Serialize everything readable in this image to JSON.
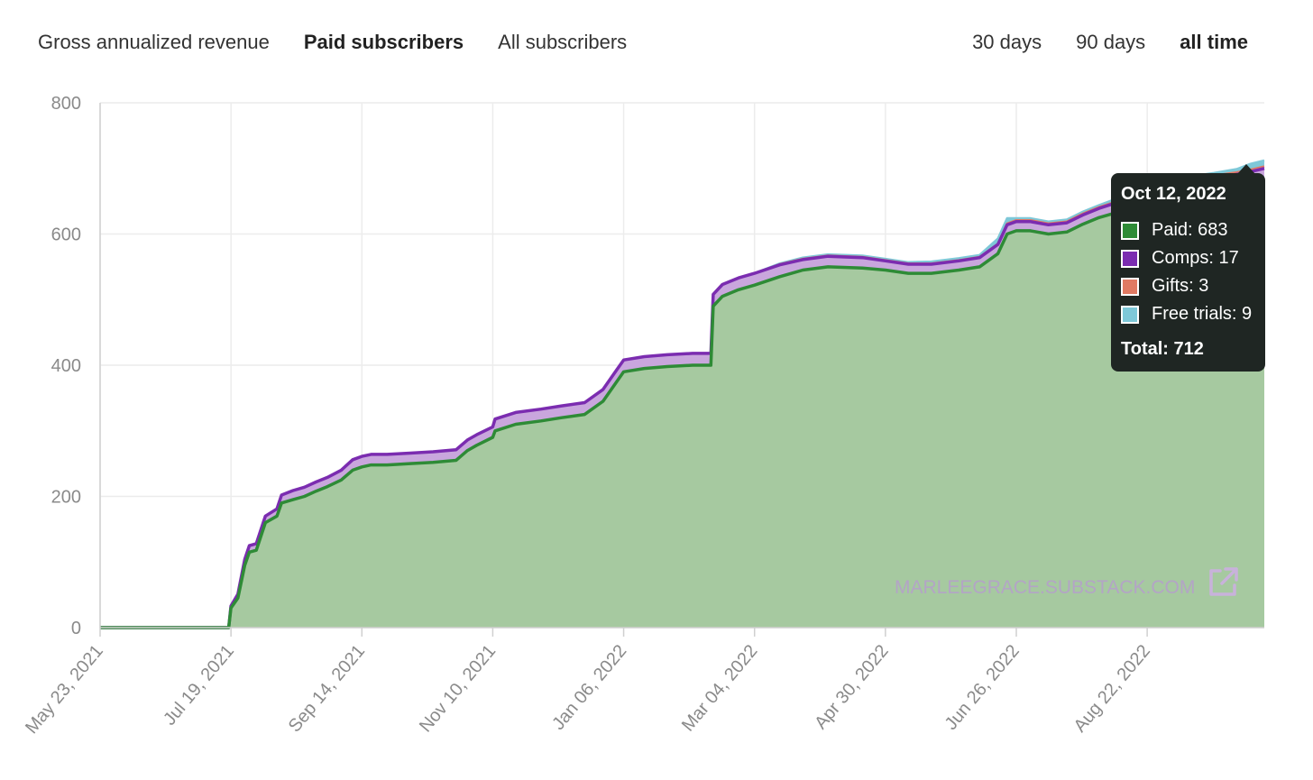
{
  "metric_tabs": [
    {
      "label": "Gross annualized revenue",
      "active": false
    },
    {
      "label": "Paid subscribers",
      "active": true
    },
    {
      "label": "All subscribers",
      "active": false
    }
  ],
  "range_tabs": [
    {
      "label": "30 days",
      "active": false
    },
    {
      "label": "90 days",
      "active": false
    },
    {
      "label": "all time",
      "active": true
    }
  ],
  "watermark": "MARLEEGRACE.SUBSTACK.COM",
  "tooltip": {
    "date": "Oct 12, 2022",
    "rows": [
      {
        "label": "Paid: 683",
        "color": "#2e8b36"
      },
      {
        "label": "Comps: 17",
        "color": "#7b2cb0"
      },
      {
        "label": "Gifts: 3",
        "color": "#e07a63"
      },
      {
        "label": "Free trials: 9",
        "color": "#7ec8d8"
      }
    ],
    "total": "Total: 712"
  },
  "chart_data": {
    "type": "area",
    "stacked": true,
    "x_tick_labels": [
      "May 23, 2021",
      "Jul 19, 2021",
      "Sep 14, 2021",
      "Nov 10, 2021",
      "Jan 06, 2022",
      "Mar 04, 2022",
      "Apr 30, 2022",
      "Jun 26, 2022",
      "Aug 22, 2022"
    ],
    "y_ticks": [
      0,
      200,
      400,
      600,
      800
    ],
    "ylim": [
      0,
      800
    ],
    "xlim": [
      "2021-05-23",
      "2022-10-12"
    ],
    "grid": true,
    "colors": {
      "paid": "#2e8b36",
      "paid_fill": "#a6c9a0",
      "comps": "#7b2cb0",
      "comps_fill": "#c9a6dd",
      "gifts": "#e07a63",
      "free_trials": "#7ec8d8"
    },
    "x": [
      "2021-05-23",
      "2021-07-18",
      "2021-07-19",
      "2021-07-22",
      "2021-07-25",
      "2021-07-27",
      "2021-07-30",
      "2021-08-03",
      "2021-08-08",
      "2021-08-10",
      "2021-08-15",
      "2021-08-20",
      "2021-08-25",
      "2021-08-30",
      "2021-09-05",
      "2021-09-10",
      "2021-09-14",
      "2021-09-18",
      "2021-09-25",
      "2021-10-05",
      "2021-10-15",
      "2021-10-25",
      "2021-10-30",
      "2021-11-03",
      "2021-11-10",
      "2021-11-11",
      "2021-11-20",
      "2021-12-01",
      "2021-12-10",
      "2021-12-20",
      "2021-12-28",
      "2022-01-03",
      "2022-01-06",
      "2022-01-15",
      "2022-01-25",
      "2022-02-05",
      "2022-02-13",
      "2022-02-14",
      "2022-02-18",
      "2022-02-25",
      "2022-03-04",
      "2022-03-15",
      "2022-03-25",
      "2022-04-05",
      "2022-04-20",
      "2022-04-30",
      "2022-05-10",
      "2022-05-20",
      "2022-06-01",
      "2022-06-10",
      "2022-06-18",
      "2022-06-22",
      "2022-06-26",
      "2022-07-02",
      "2022-07-10",
      "2022-07-18",
      "2022-07-25",
      "2022-08-01",
      "2022-08-08",
      "2022-08-15",
      "2022-08-22",
      "2022-09-01",
      "2022-09-10",
      "2022-09-20",
      "2022-09-30",
      "2022-10-06",
      "2022-10-12"
    ],
    "series": [
      {
        "key": "paid",
        "name": "Paid",
        "values": [
          0,
          0,
          30,
          45,
          95,
          115,
          118,
          160,
          170,
          190,
          195,
          200,
          208,
          215,
          225,
          240,
          245,
          248,
          248,
          250,
          252,
          255,
          270,
          278,
          290,
          300,
          310,
          315,
          320,
          325,
          345,
          375,
          390,
          395,
          398,
          400,
          400,
          490,
          505,
          515,
          522,
          535,
          545,
          550,
          548,
          545,
          540,
          540,
          545,
          550,
          570,
          600,
          605,
          605,
          600,
          603,
          615,
          625,
          632,
          640,
          648,
          655,
          665,
          670,
          675,
          678,
          683
        ]
      },
      {
        "key": "comps",
        "name": "Comps",
        "values": [
          0,
          0,
          3,
          6,
          9,
          10,
          10,
          10,
          11,
          12,
          14,
          14,
          14,
          14,
          15,
          16,
          16,
          16,
          16,
          16,
          16,
          16,
          16,
          16,
          16,
          18,
          18,
          18,
          18,
          18,
          18,
          18,
          18,
          18,
          18,
          18,
          18,
          18,
          18,
          18,
          18,
          18,
          16,
          16,
          16,
          14,
          14,
          14,
          14,
          14,
          14,
          14,
          14,
          14,
          14,
          14,
          14,
          14,
          15,
          15,
          15,
          15,
          16,
          16,
          16,
          17,
          17
        ]
      },
      {
        "key": "gifts",
        "name": "Gifts",
        "values": [
          0,
          0,
          0,
          0,
          0,
          0,
          0,
          0,
          0,
          0,
          0,
          0,
          0,
          0,
          0,
          0,
          0,
          0,
          0,
          0,
          0,
          0,
          0,
          0,
          0,
          0,
          0,
          0,
          0,
          0,
          0,
          0,
          0,
          0,
          0,
          0,
          0,
          0,
          0,
          0,
          0,
          1,
          1,
          1,
          1,
          1,
          1,
          1,
          1,
          1,
          1,
          2,
          2,
          2,
          2,
          2,
          2,
          2,
          2,
          2,
          2,
          2,
          3,
          3,
          3,
          3,
          3
        ]
      },
      {
        "key": "free_trials",
        "name": "Free trials",
        "values": [
          0,
          0,
          0,
          0,
          0,
          0,
          0,
          0,
          0,
          0,
          0,
          0,
          0,
          0,
          0,
          0,
          0,
          0,
          0,
          0,
          0,
          0,
          0,
          0,
          0,
          0,
          0,
          0,
          0,
          0,
          0,
          0,
          0,
          0,
          0,
          0,
          0,
          0,
          0,
          0,
          0,
          1,
          2,
          2,
          2,
          2,
          2,
          3,
          3,
          3,
          8,
          8,
          3,
          3,
          3,
          3,
          3,
          3,
          4,
          4,
          4,
          4,
          4,
          4,
          5,
          9,
          9
        ]
      }
    ]
  }
}
